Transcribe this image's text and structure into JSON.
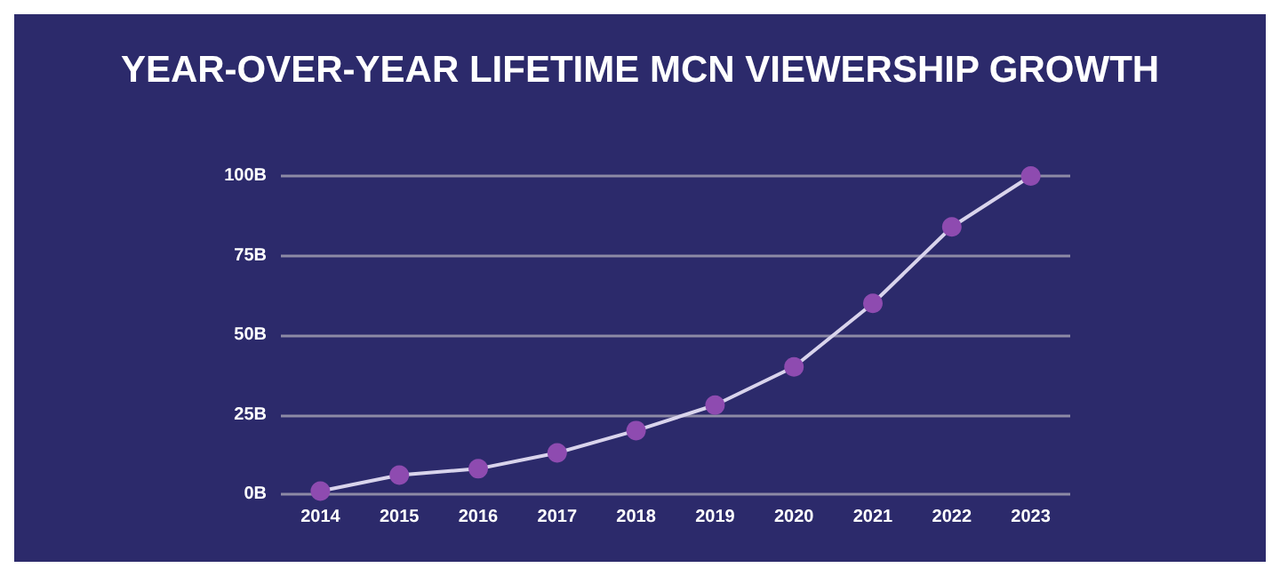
{
  "chart_data": {
    "type": "line",
    "title": "YEAR-OVER-YEAR LIFETIME MCN VIEWERSHIP GROWTH",
    "categories": [
      "2014",
      "2015",
      "2016",
      "2017",
      "2018",
      "2019",
      "2020",
      "2021",
      "2022",
      "2023"
    ],
    "series": [
      {
        "color": "#d9d4ec",
        "values": [
          1,
          6,
          8,
          13,
          20,
          28,
          40,
          60,
          84,
          100
        ]
      }
    ],
    "ylim": [
      0,
      100
    ],
    "yticks": [
      {
        "value": 0,
        "label": "0B"
      },
      {
        "value": 25,
        "label": "25B"
      },
      {
        "value": 50,
        "label": "50B"
      },
      {
        "value": 75,
        "label": "75B"
      },
      {
        "value": 100,
        "label": "100B"
      }
    ],
    "grid": "y",
    "marker": "circle",
    "line_style": "solid"
  }
}
